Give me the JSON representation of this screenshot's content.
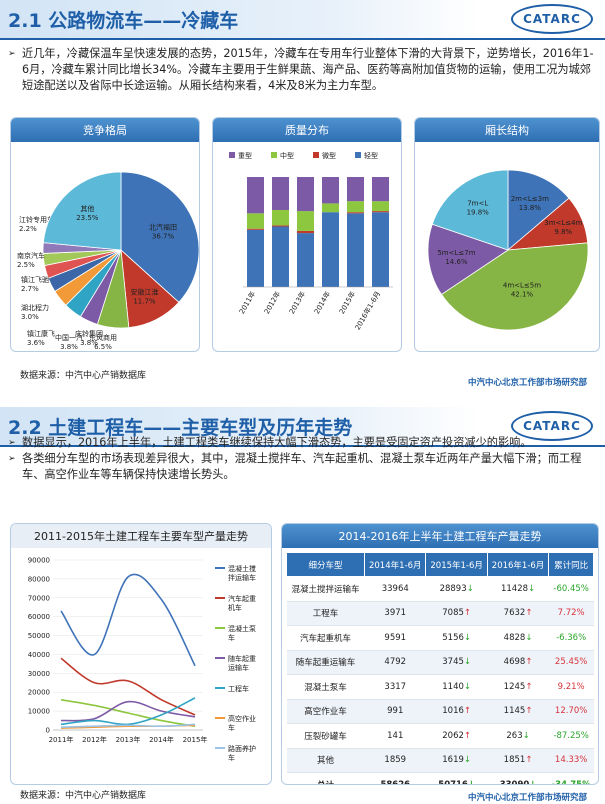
{
  "logo": "CATARC",
  "section1": {
    "title": "2.1 公路物流车——冷藏车",
    "bullet": "近几年，冷藏保温车呈快速发展的态势，2015年，冷藏车在专用车行业整体下滑的大背景下，逆势增长，2016年1-6月，冷藏车累计同比增长34%。冷藏车主要用于生鲜果蔬、海产品、医药等高附加值货物的运输，使用工况为城郊短途配送以及省际中长途运输。从厢长结构来看，4米及8米为主力车型。",
    "panels": {
      "competition": "竞争格局",
      "quality": "质量分布",
      "length": "厢长结构"
    },
    "source": "数据来源：中汽中心产销数据库",
    "footer": "中汽中心北京工作部市场研究部"
  },
  "section2": {
    "title": "2.2 土建工程车——主要车型及历年走势",
    "bullets": [
      "数据显示，2016年上半年，土建工程类车继续保持大幅下滑态势，主要是受固定资产投资减少的影响。",
      "各类细分车型的市场表现差异很大，其中，混凝土搅拌车、汽车起重机、混凝土泵车近两年产量大幅下滑；而工程车、高空作业车等车辆保持快速增长势头。"
    ],
    "line_panel_title": "2011-2015年土建工程车主要车型产量走势",
    "table_panel_title": "2014-2016年上半年土建工程车产量走势",
    "table": {
      "headers": [
        "细分车型",
        "2014年1-6月",
        "2015年1-6月",
        "2016年1-6月",
        "累计同比"
      ],
      "rows": [
        {
          "name": "混凝土搅拌运输车",
          "v2014": "33964",
          "v2015": "28893",
          "a2015": "↓",
          "v2016": "11428",
          "a2016": "↓",
          "chg": "-60.45%"
        },
        {
          "name": "工程车",
          "v2014": "3971",
          "v2015": "7085",
          "a2015": "↑",
          "v2016": "7632",
          "a2016": "↑",
          "chg": "7.72%"
        },
        {
          "name": "汽车起重机车",
          "v2014": "9591",
          "v2015": "5156",
          "a2015": "↓",
          "v2016": "4828",
          "a2016": "↓",
          "chg": "-6.36%"
        },
        {
          "name": "随车起重运输车",
          "v2014": "4792",
          "v2015": "3745",
          "a2015": "↓",
          "v2016": "4698",
          "a2016": "↑",
          "chg": "25.45%"
        },
        {
          "name": "混凝土泵车",
          "v2014": "3317",
          "v2015": "1140",
          "a2015": "↓",
          "v2016": "1245",
          "a2016": "↑",
          "chg": "9.21%"
        },
        {
          "name": "高空作业车",
          "v2014": "991",
          "v2015": "1016",
          "a2015": "↑",
          "v2016": "1145",
          "a2016": "↑",
          "chg": "12.70%"
        },
        {
          "name": "压裂砂罐车",
          "v2014": "141",
          "v2015": "2062",
          "a2015": "↑",
          "v2016": "263",
          "a2016": "↓",
          "chg": "-87.25%"
        },
        {
          "name": "其他",
          "v2014": "1859",
          "v2015": "1619",
          "a2015": "↓",
          "v2016": "1851",
          "a2016": "↑",
          "chg": "14.33%"
        },
        {
          "name": "总计",
          "v2014": "58626",
          "v2015": "50716",
          "a2015": "↓",
          "v2016": "33090",
          "a2016": "↓",
          "chg": "-34.75%"
        }
      ]
    },
    "source": "数据来源：中汽中心产销数据库",
    "footer": "中汽中心北京工作部市场研究部"
  },
  "colors": {
    "title_blue": "#1e5fa8",
    "up_red": "#d6323a",
    "down_green": "#2aa52a"
  },
  "chart_data": [
    {
      "type": "pie",
      "title": "竞争格局",
      "slices": [
        {
          "label": "北汽福田",
          "value": 36.7,
          "color": "#3f73b8"
        },
        {
          "label": "安徽江淮",
          "value": 11.7,
          "color": "#c0392b"
        },
        {
          "label": "东风商用",
          "value": 6.5,
          "color": "#86b545"
        },
        {
          "label": "中国一汽",
          "value": 3.8,
          "color": "#7d5aa6"
        },
        {
          "label": "庆铃集团",
          "value": 3.8,
          "color": "#2fa4c4"
        },
        {
          "label": "镇江康飞",
          "value": 3.6,
          "color": "#f29a38"
        },
        {
          "label": "湖北程力",
          "value": 3.0,
          "color": "#3b67a8"
        },
        {
          "label": "镇江飞驰",
          "value": 2.7,
          "color": "#e05353"
        },
        {
          "label": "南京汽车",
          "value": 2.5,
          "color": "#a3c85a"
        },
        {
          "label": "江铃专用车",
          "value": 2.2,
          "color": "#9079b8"
        },
        {
          "label": "其他",
          "value": 23.5,
          "color": "#5db9d8"
        }
      ]
    },
    {
      "type": "bar",
      "title": "质量分布",
      "stacked": true,
      "percent": true,
      "categories": [
        "2011年",
        "2012年",
        "2013年",
        "2014年",
        "2015年",
        "2016年1-6月"
      ],
      "series": [
        {
          "name": "轻型",
          "color": "#3f73b8",
          "values": [
            52,
            55,
            49,
            68,
            67,
            68
          ]
        },
        {
          "name": "微型",
          "color": "#c0392b",
          "values": [
            1,
            1,
            2,
            0,
            1,
            1
          ]
        },
        {
          "name": "中型",
          "color": "#8dc63f",
          "values": [
            14,
            14,
            18,
            8,
            10,
            9
          ]
        },
        {
          "name": "重型",
          "color": "#7d5aa6",
          "values": [
            33,
            30,
            31,
            24,
            22,
            22
          ]
        }
      ],
      "legend": [
        "重型",
        "中型",
        "微型",
        "轻型"
      ]
    },
    {
      "type": "pie",
      "title": "厢长结构",
      "slices": [
        {
          "label": "2m<L≤3m",
          "value": 13.8,
          "color": "#3f73b8"
        },
        {
          "label": "3m<L≤4m",
          "value": 9.8,
          "color": "#c0392b"
        },
        {
          "label": "4m<L≤5m",
          "value": 42.1,
          "color": "#86b545"
        },
        {
          "label": "5m<L≤7m",
          "value": 14.6,
          "color": "#7d5aa6"
        },
        {
          "label": "7m<L",
          "value": 19.8,
          "color": "#5db9d8"
        }
      ]
    },
    {
      "type": "line",
      "title": "2011-2015年土建工程车主要车型产量走势",
      "x": [
        "2011年",
        "2012年",
        "2013年",
        "2014年",
        "2015年"
      ],
      "ylim": [
        0,
        90000
      ],
      "yticks": [
        0,
        10000,
        20000,
        30000,
        40000,
        50000,
        60000,
        70000,
        80000,
        90000
      ],
      "series": [
        {
          "name": "混凝土搅拌运输车",
          "color": "#3f73b8",
          "values": [
            63000,
            40000,
            81000,
            69000,
            34000
          ]
        },
        {
          "name": "汽车起重机车",
          "color": "#c0392b",
          "values": [
            38000,
            25000,
            26000,
            16000,
            8000
          ]
        },
        {
          "name": "混凝土泵车",
          "color": "#8dc63f",
          "values": [
            16000,
            13000,
            9000,
            5000,
            2000
          ]
        },
        {
          "name": "随车起重运输车",
          "color": "#7d5aa6",
          "values": [
            5000,
            6000,
            15000,
            10000,
            7000
          ]
        },
        {
          "name": "工程车",
          "color": "#2fa4c4",
          "values": [
            3000,
            5000,
            3000,
            8000,
            17000
          ]
        },
        {
          "name": "高空作业车",
          "color": "#f29a38",
          "values": [
            1000,
            1500,
            2000,
            2000,
            2500
          ]
        },
        {
          "name": "路面养护车",
          "color": "#9dc3e6",
          "values": [
            1500,
            2000,
            2500,
            2000,
            3000
          ]
        }
      ]
    }
  ]
}
